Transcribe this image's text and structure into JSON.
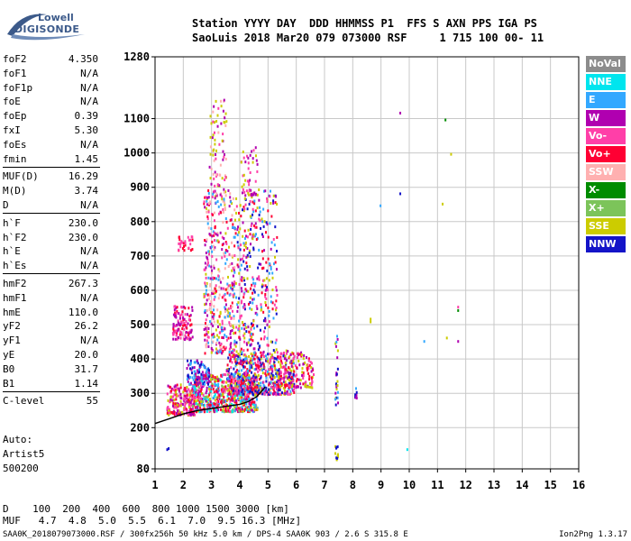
{
  "logo": {
    "line1": "Lowell",
    "line2": "DIGISONDE"
  },
  "header": {
    "labels": "Station YYYY DAY  DDD HHMMSS P1  FFS S AXN PPS IGA PS",
    "values": "SaoLuis 2018 Mar20 079 073000 RSF     1 715 100 00- 11"
  },
  "params": [
    {
      "label": "foF2",
      "value": "4.350"
    },
    {
      "label": "foF1",
      "value": "N/A"
    },
    {
      "label": "foF1p",
      "value": "N/A"
    },
    {
      "label": "foE",
      "value": "N/A"
    },
    {
      "label": "foEp",
      "value": "0.39"
    },
    {
      "label": "fxI",
      "value": "5.30"
    },
    {
      "label": "foEs",
      "value": "N/A"
    },
    {
      "label": "fmin",
      "value": "1.45"
    },
    {
      "label": "MUF(D)",
      "value": "16.29"
    },
    {
      "label": "M(D)",
      "value": "3.74"
    },
    {
      "label": "D",
      "value": "N/A"
    },
    {
      "label": "h`F",
      "value": "230.0"
    },
    {
      "label": "h`F2",
      "value": "230.0"
    },
    {
      "label": "h`E",
      "value": "N/A"
    },
    {
      "label": "h`Es",
      "value": "N/A"
    },
    {
      "label": "hmF2",
      "value": "267.3"
    },
    {
      "label": "hmF1",
      "value": "N/A"
    },
    {
      "label": "hmE",
      "value": "110.0"
    },
    {
      "label": "yF2",
      "value": "26.2"
    },
    {
      "label": "yF1",
      "value": "N/A"
    },
    {
      "label": "yE",
      "value": "20.0"
    },
    {
      "label": "B0",
      "value": "31.7"
    },
    {
      "label": "B1",
      "value": "1.14"
    },
    {
      "label": "C-level",
      "value": "55"
    }
  ],
  "auto": {
    "line1": "Auto:",
    "line2": "Artist5",
    "line3": "500200"
  },
  "legend": [
    {
      "name": "NoVal",
      "color": "#8c8c8c"
    },
    {
      "name": "NNE",
      "color": "#00e5ee"
    },
    {
      "name": "E",
      "color": "#33a8ff"
    },
    {
      "name": "W",
      "color": "#b000b0"
    },
    {
      "name": "Vo-",
      "color": "#ff3fa8"
    },
    {
      "name": "Vo+",
      "color": "#ff0033"
    },
    {
      "name": "SSW",
      "color": "#ffb0b0"
    },
    {
      "name": "X-",
      "color": "#008c00"
    },
    {
      "name": "X+",
      "color": "#7cc45a"
    },
    {
      "name": "SSE",
      "color": "#cccc00"
    },
    {
      "name": "NNW",
      "color": "#1414c8"
    }
  ],
  "dmuf": {
    "d_row": "D    100  200  400  600  800 1000 1500 3000 [km]",
    "muf_row": "MUF   4.7  4.8  5.0  5.5  6.1  7.0  9.5 16.3 [MHz]"
  },
  "footer": {
    "left": "SAA0K_2018079073000.RSF / 300fx256h 50 kHz 5.0 km / DPS-4 SAA0K 903 / 2.6 S 315.8 E",
    "version": "Ion2Png 1.3.17"
  },
  "chart_data": {
    "type": "scatter",
    "x_ticks": [
      1,
      2,
      3,
      4,
      5,
      6,
      7,
      8,
      9,
      10,
      11,
      12,
      13,
      14,
      15,
      16
    ],
    "y_ticks": [
      80,
      200,
      300,
      400,
      500,
      600,
      700,
      800,
      900,
      1000,
      1100,
      1280
    ],
    "xlim": [
      1,
      16
    ],
    "ylim": [
      80,
      1280
    ],
    "grid": true,
    "trace_color": "#000000",
    "trace": [
      [
        1.0,
        212
      ],
      [
        1.5,
        226
      ],
      [
        2.0,
        240
      ],
      [
        2.5,
        250
      ],
      [
        3.0,
        256
      ],
      [
        3.5,
        262
      ],
      [
        4.0,
        268
      ],
      [
        4.3,
        276
      ],
      [
        4.6,
        290
      ],
      [
        4.9,
        318
      ]
    ],
    "clusters": [
      {
        "x": [
          1.4,
          2.4
        ],
        "y": [
          240,
          330
        ],
        "count": 220,
        "colors": [
          "#ff0033",
          "#ff3fa8",
          "#b000b0",
          "#cccc00"
        ]
      },
      {
        "x": [
          2.3,
          4.6
        ],
        "y": [
          250,
          360
        ],
        "count": 700,
        "colors": [
          "#ff0033",
          "#ff0033",
          "#ff3fa8",
          "#b000b0",
          "#cccc00",
          "#7cc45a",
          "#33a8ff",
          "#00e5ee"
        ]
      },
      {
        "x": [
          3.5,
          5.9
        ],
        "y": [
          300,
          420
        ],
        "count": 500,
        "colors": [
          "#ff0033",
          "#ff3fa8",
          "#b000b0",
          "#cccc00",
          "#33a8ff",
          "#1414c8"
        ]
      },
      {
        "x": [
          5.3,
          6.6
        ],
        "y": [
          320,
          430
        ],
        "count": 150,
        "colors": [
          "#ff0033",
          "#b000b0",
          "#ff3fa8",
          "#cccc00"
        ]
      },
      {
        "x": [
          1.6,
          2.3
        ],
        "y": [
          460,
          560
        ],
        "count": 110,
        "colors": [
          "#ff0033",
          "#ff3fa8",
          "#b000b0"
        ]
      },
      {
        "x": [
          2.7,
          3.8
        ],
        "y": [
          420,
          900
        ],
        "count": 420,
        "colors": [
          "#b000b0",
          "#ff3fa8",
          "#cccc00",
          "#ff0033",
          "#ffb0b0",
          "#33a8ff"
        ]
      },
      {
        "x": [
          3.8,
          5.3
        ],
        "y": [
          380,
          900
        ],
        "count": 420,
        "colors": [
          "#b000b0",
          "#ff3fa8",
          "#ff0033",
          "#cccc00",
          "#33a8ff",
          "#1414c8"
        ]
      },
      {
        "x": [
          2.9,
          3.5
        ],
        "y": [
          880,
          1160
        ],
        "count": 80,
        "colors": [
          "#ff3fa8",
          "#ffb0b0",
          "#b000b0",
          "#cccc00"
        ]
      },
      {
        "x": [
          4.0,
          4.6
        ],
        "y": [
          880,
          1020
        ],
        "count": 50,
        "colors": [
          "#ff3fa8",
          "#b000b0",
          "#cccc00"
        ]
      },
      {
        "x": [
          2.1,
          2.9
        ],
        "y": [
          330,
          400
        ],
        "count": 90,
        "colors": [
          "#1414c8",
          "#b000b0",
          "#33a8ff"
        ]
      },
      {
        "x": [
          1.8,
          2.3
        ],
        "y": [
          720,
          760
        ],
        "count": 30,
        "colors": [
          "#ff0033",
          "#ff3fa8"
        ]
      },
      {
        "x": [
          7.35,
          7.45
        ],
        "y": [
          270,
          490
        ],
        "count": 25,
        "colors": [
          "#cccc00",
          "#b000b0",
          "#1414c8",
          "#33a8ff"
        ]
      },
      {
        "x": [
          7.35,
          7.45
        ],
        "y": [
          110,
          150
        ],
        "count": 12,
        "colors": [
          "#cccc00",
          "#1414c8"
        ]
      },
      {
        "x": [
          8.05,
          8.15
        ],
        "y": [
          290,
          320
        ],
        "count": 10,
        "colors": [
          "#1414c8",
          "#33a8ff",
          "#b000b0"
        ]
      }
    ],
    "points": [
      {
        "x": 9.65,
        "y": 1120,
        "c": "#b000b0"
      },
      {
        "x": 11.25,
        "y": 1100,
        "c": "#008c00"
      },
      {
        "x": 11.45,
        "y": 1000,
        "c": "#cccc00"
      },
      {
        "x": 9.65,
        "y": 885,
        "c": "#1414c8"
      },
      {
        "x": 8.95,
        "y": 850,
        "c": "#33a8ff"
      },
      {
        "x": 11.15,
        "y": 855,
        "c": "#cccc00"
      },
      {
        "x": 11.7,
        "y": 555,
        "c": "#ff3fa8"
      },
      {
        "x": 11.7,
        "y": 545,
        "c": "#008c00"
      },
      {
        "x": 8.6,
        "y": 520,
        "c": "#cccc00"
      },
      {
        "x": 8.6,
        "y": 512,
        "c": "#cccc00"
      },
      {
        "x": 10.5,
        "y": 455,
        "c": "#33a8ff"
      },
      {
        "x": 11.3,
        "y": 465,
        "c": "#cccc00"
      },
      {
        "x": 11.7,
        "y": 455,
        "c": "#b000b0"
      },
      {
        "x": 9.9,
        "y": 140,
        "c": "#00e5ee"
      },
      {
        "x": 1.4,
        "y": 140,
        "c": "#1414c8"
      },
      {
        "x": 1.45,
        "y": 143,
        "c": "#1414c8"
      }
    ]
  }
}
